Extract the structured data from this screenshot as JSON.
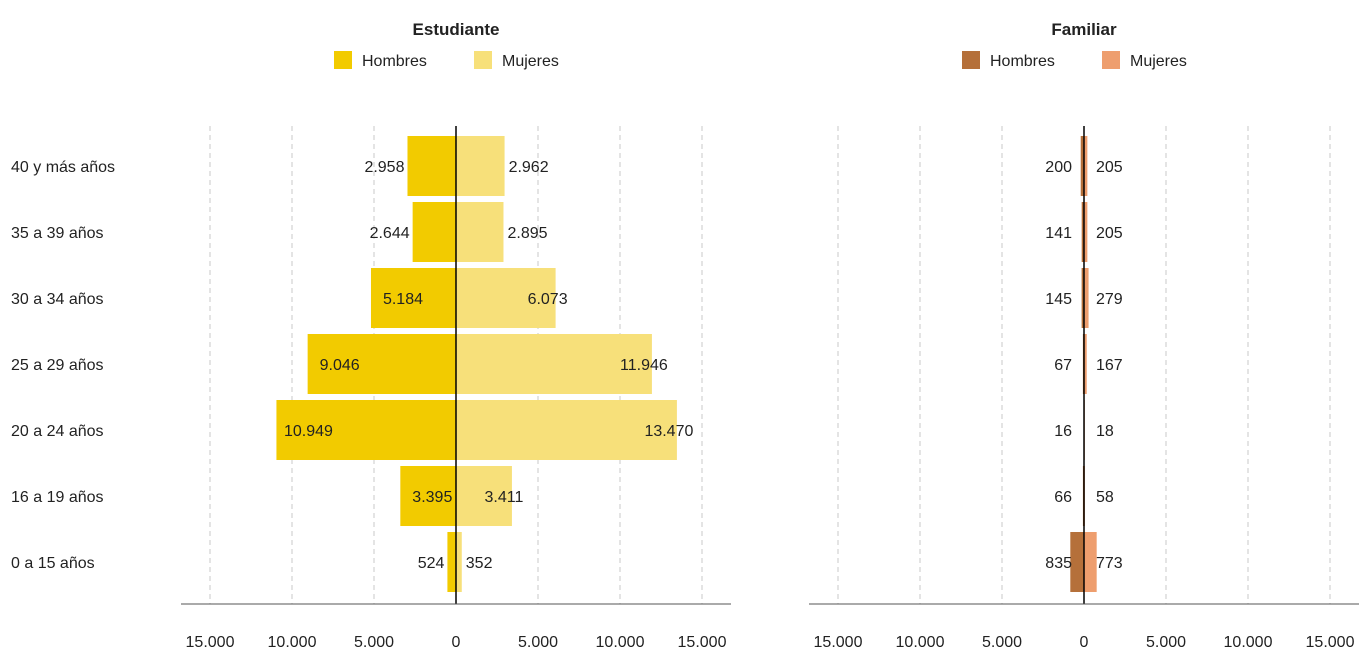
{
  "chart_data": {
    "type": "bar",
    "categories": [
      "40 y más años",
      "35 a 39 años",
      "30 a 34 años",
      "25 a 29 años",
      "20 a 24 años",
      "16 a 19 años",
      "0 a 15 años"
    ],
    "xlim": [
      -15000,
      15000
    ],
    "xtick_labels": [
      "15.000",
      "10.000",
      "5.000",
      "0",
      "5.000",
      "10.000",
      "15.000"
    ],
    "grid": "vertical dashed",
    "panels": [
      {
        "title": "Estudiante",
        "legend_position": "top-center",
        "series": [
          {
            "name": "Hombres",
            "color": "#F2CB00",
            "values": [
              2958,
              2644,
              5184,
              9046,
              10949,
              3395,
              524
            ],
            "labels": [
              "2.958",
              "2.644",
              "5.184",
              "9.046",
              "10.949",
              "3.395",
              "524"
            ]
          },
          {
            "name": "Mujeres",
            "color": "#F7E07A",
            "values": [
              2962,
              2895,
              6073,
              11946,
              13470,
              3411,
              352
            ],
            "labels": [
              "2.962",
              "2.895",
              "6.073",
              "11.946",
              "13.470",
              "3.411",
              "352"
            ]
          }
        ]
      },
      {
        "title": "Familiar",
        "legend_position": "top-center",
        "series": [
          {
            "name": "Hombres",
            "color": "#B5703A",
            "values": [
              200,
              141,
              145,
              67,
              16,
              66,
              835
            ],
            "labels": [
              "200",
              "141",
              "145",
              "67",
              "16",
              "66",
              "835"
            ]
          },
          {
            "name": "Mujeres",
            "color": "#EE9E6E",
            "values": [
              205,
              205,
              279,
              167,
              18,
              58,
              773
            ],
            "labels": [
              "205",
              "205",
              "279",
              "167",
              "18",
              "58",
              "773"
            ]
          }
        ]
      }
    ]
  }
}
